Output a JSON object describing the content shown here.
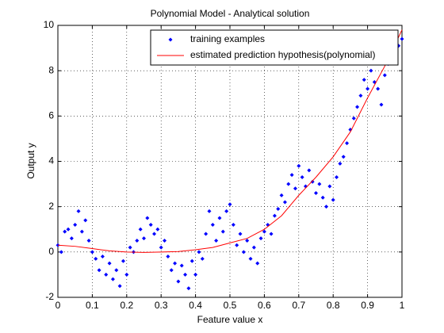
{
  "chart_data": {
    "type": "scatter",
    "title": "Polynomial Model - Analytical solution",
    "xlabel": "Feature value x",
    "ylabel": "Output y",
    "xlim": [
      0,
      1
    ],
    "ylim": [
      -2,
      10
    ],
    "xticks": [
      0,
      0.1,
      0.2,
      0.3,
      0.4,
      0.5,
      0.6,
      0.7,
      0.8,
      0.9,
      1
    ],
    "yticks": [
      -2,
      0,
      2,
      4,
      6,
      8,
      10
    ],
    "grid": true,
    "legend": "upper right",
    "series": [
      {
        "name": "training examples",
        "kind": "scatter",
        "color": "#0000ff",
        "x": [
          0,
          0.01,
          0.02,
          0.03,
          0.04,
          0.05,
          0.06,
          0.07,
          0.08,
          0.09,
          0.1,
          0.11,
          0.12,
          0.13,
          0.14,
          0.15,
          0.16,
          0.17,
          0.18,
          0.19,
          0.2,
          0.21,
          0.22,
          0.23,
          0.24,
          0.25,
          0.26,
          0.27,
          0.28,
          0.29,
          0.3,
          0.31,
          0.32,
          0.33,
          0.34,
          0.35,
          0.36,
          0.37,
          0.38,
          0.39,
          0.4,
          0.41,
          0.42,
          0.43,
          0.44,
          0.45,
          0.46,
          0.47,
          0.48,
          0.49,
          0.5,
          0.51,
          0.52,
          0.53,
          0.54,
          0.55,
          0.56,
          0.57,
          0.58,
          0.59,
          0.6,
          0.61,
          0.62,
          0.63,
          0.64,
          0.65,
          0.66,
          0.67,
          0.68,
          0.69,
          0.7,
          0.71,
          0.72,
          0.73,
          0.74,
          0.75,
          0.76,
          0.77,
          0.78,
          0.79,
          0.8,
          0.81,
          0.82,
          0.83,
          0.84,
          0.85,
          0.86,
          0.87,
          0.88,
          0.89,
          0.9,
          0.91,
          0.92,
          0.93,
          0.94,
          0.95,
          0.96,
          0.97,
          0.98,
          0.99,
          1
        ],
        "values": [
          0.3,
          0.0,
          0.9,
          1.0,
          0.6,
          1.2,
          1.8,
          0.9,
          1.4,
          0.5,
          0.0,
          -0.3,
          -0.8,
          -0.2,
          -1.0,
          -0.5,
          -1.2,
          -0.8,
          -1.5,
          -0.4,
          -1.0,
          0.2,
          0.0,
          0.5,
          1.0,
          0.6,
          1.5,
          1.2,
          0.8,
          1.0,
          0.2,
          0.5,
          -0.2,
          -0.8,
          -0.5,
          -1.3,
          -0.6,
          -1.0,
          -1.6,
          -0.4,
          -1.0,
          0.0,
          -0.3,
          0.8,
          1.8,
          1.2,
          0.5,
          1.5,
          0.9,
          1.8,
          2.1,
          1.2,
          0.3,
          0.8,
          0.0,
          0.5,
          -0.3,
          0.2,
          -0.5,
          0.6,
          0.9,
          1.2,
          0.8,
          1.6,
          1.9,
          2.5,
          2.2,
          3.0,
          3.4,
          2.8,
          3.8,
          3.3,
          2.9,
          3.6,
          3.1,
          2.6,
          3.0,
          2.4,
          2.0,
          2.9,
          2.3,
          3.3,
          3.9,
          4.2,
          4.8,
          5.4,
          5.9,
          6.4,
          6.9,
          7.6,
          7.2,
          8.0,
          7.5,
          7.2,
          6.5,
          7.8,
          8.3,
          8.5,
          8.8,
          9.1,
          9.4
        ]
      },
      {
        "name": "estimated prediction hypothesis(polynomial)",
        "kind": "line",
        "color": "#ff0000",
        "x": [
          0,
          0.05,
          0.1,
          0.15,
          0.2,
          0.25,
          0.3,
          0.35,
          0.4,
          0.45,
          0.5,
          0.55,
          0.6,
          0.65,
          0.7,
          0.75,
          0.8,
          0.85,
          0.9,
          0.95,
          1
        ],
        "values": [
          0.3,
          0.25,
          0.15,
          0.05,
          0,
          -0.02,
          0,
          0.02,
          0.1,
          0.2,
          0.4,
          0.6,
          1.0,
          1.6,
          2.5,
          3.3,
          4.2,
          5.3,
          6.8,
          8.2,
          9.8
        ]
      }
    ]
  }
}
